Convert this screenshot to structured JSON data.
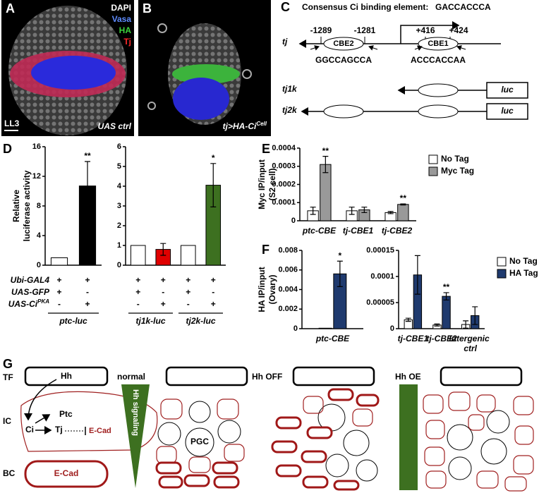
{
  "panel_labels": [
    "A",
    "B",
    "C",
    "D",
    "E",
    "F",
    "G"
  ],
  "panel_a": {
    "channels": [
      "DAPI",
      "Vasa",
      "HA",
      "Tj"
    ],
    "stage": "LL3",
    "condition": "UAS ctrl"
  },
  "panel_b": {
    "condition": "tj>HA-Ci",
    "condition_sup": "Cell"
  },
  "panel_c": {
    "title": "Consensus Ci binding element:",
    "consensus": "GACCACCCA",
    "gene": "tj",
    "sites": [
      {
        "name": "CBE2",
        "start": "-1289",
        "end": "-1281",
        "sequence": "GGCCAGCCA"
      },
      {
        "name": "CBE1",
        "start": "+416",
        "end": "+424",
        "sequence": "ACCCACCAA"
      }
    ],
    "constructs": [
      {
        "name": "tj1k",
        "reporter": "luc"
      },
      {
        "name": "tj2k",
        "reporter": "luc"
      }
    ]
  },
  "chart_data": [
    {
      "type": "bar",
      "ylabel": [
        "Relative",
        "luciferase activity"
      ],
      "values": [
        1,
        10.7
      ],
      "errors": [
        null,
        3.3
      ],
      "colors": [
        "#ffffff",
        "#000000"
      ],
      "significance": [
        null,
        "**"
      ],
      "ylim": [
        0,
        16
      ],
      "yticks": [
        0,
        4,
        8,
        12,
        16
      ],
      "conditions": [
        {
          "label": "Ubi-GAL4",
          "signs": [
            "+",
            "+"
          ]
        },
        {
          "label": "UAS-GFP",
          "signs": [
            "+",
            "-"
          ]
        },
        {
          "label": "UAS-Ci",
          "label_sup": "PKA",
          "signs": [
            "-",
            "+"
          ]
        }
      ],
      "groups": [
        "ptc-luc"
      ]
    },
    {
      "type": "bar",
      "values": [
        1,
        0.8,
        1,
        4.05
      ],
      "errors": [
        null,
        0.3,
        null,
        1.1
      ],
      "colors": [
        "#ffffff",
        "#e00000",
        "#ffffff",
        "#3d7020"
      ],
      "significance": [
        null,
        null,
        null,
        "*"
      ],
      "ylim": [
        0,
        6
      ],
      "yticks": [
        0,
        1,
        2,
        3,
        4,
        5,
        6
      ],
      "conditions": [
        {
          "signs": [
            "+",
            "+",
            "+",
            "+"
          ]
        },
        {
          "signs": [
            "+",
            "-",
            "+",
            "-"
          ]
        },
        {
          "signs": [
            "-",
            "+",
            "-",
            "+"
          ]
        }
      ],
      "groups": [
        "tj1k-luc",
        "tj2k-luc"
      ]
    },
    {
      "type": "bar",
      "ylabel": [
        "Myc IP/input",
        "(S2 cell)"
      ],
      "categories": [
        "ptc-CBE",
        "tj-CBE1",
        "tj-CBE2"
      ],
      "series": [
        {
          "name": "No Tag",
          "color": "#ffffff",
          "values": [
            5.5e-05,
            5.5e-05,
            4.5e-05
          ],
          "errors": [
            2e-05,
            2e-05,
            6e-06
          ]
        },
        {
          "name": "Myc Tag",
          "color": "#999999",
          "values": [
            0.00031,
            6e-05,
            9e-05
          ],
          "errors": [
            4.5e-05,
            1.5e-05,
            3e-06
          ],
          "significance": [
            "**",
            null,
            "**"
          ]
        }
      ],
      "ylim": [
        0,
        0.0004
      ],
      "yticks": [
        0,
        0.0001,
        0.0002,
        0.0003,
        0.0004
      ],
      "legend": "upper right"
    },
    {
      "type": "bar",
      "ylabel": [
        "HA IP/input",
        "(Ovary)"
      ],
      "categories": [
        "ptc-CBE"
      ],
      "series": [
        {
          "color": "#ffffff",
          "values": [
            5e-05
          ]
        },
        {
          "color": "#1f3a6e",
          "values": [
            0.0056
          ],
          "errors": [
            0.0013
          ],
          "significance": [
            "*"
          ]
        }
      ],
      "ylim": [
        0,
        0.008
      ],
      "yticks": [
        0,
        0.002,
        0.004,
        0.006,
        0.008
      ]
    },
    {
      "type": "bar",
      "categories": [
        "tj-CBE1",
        "tj-CBE2",
        "Intergenic ctrl"
      ],
      "series": [
        {
          "name": "No Tag",
          "color": "#ffffff",
          "values": [
            1.7e-05,
            7e-06,
            8e-06
          ],
          "errors": [
            3e-06,
            2e-06,
            7e-06
          ]
        },
        {
          "name": "HA Tag",
          "color": "#1f3a6e",
          "values": [
            0.000103,
            6.2e-05,
            2.5e-05
          ],
          "errors": [
            3.7e-05,
            7e-06,
            1.7e-05
          ],
          "significance": [
            null,
            "**",
            null
          ]
        }
      ],
      "ylim": [
        0,
        0.00015
      ],
      "yticks": [
        0,
        5e-05,
        0.0001,
        0.00015
      ],
      "legend": "upper right"
    }
  ],
  "panel_g": {
    "rows": [
      "TF",
      "IC",
      "BC"
    ],
    "ligand": "Hh",
    "pathway": {
      "ptc": "Ptc",
      "ci": "Ci",
      "tj": "Tj",
      "ecad": "E-Cad"
    },
    "bc_label": "E-Cad",
    "conditions": [
      "normal",
      "Hh OFF",
      "Hh OE"
    ],
    "gradient": "Hh signaling",
    "pgc": "PGC"
  }
}
